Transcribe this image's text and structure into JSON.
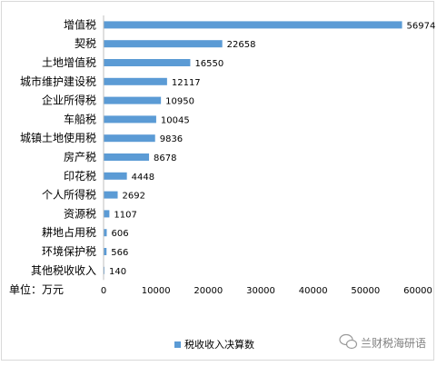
{
  "chart_data": {
    "type": "bar",
    "orientation": "horizontal",
    "categories": [
      "增值税",
      "契税",
      "土地增值税",
      "城市维护建设税",
      "企业所得税",
      "车船税",
      "城镇土地使用税",
      "房产税",
      "印花税",
      "个人所得税",
      "资源税",
      "耕地占用税",
      "环境保护税",
      "其他税收收入"
    ],
    "series": [
      {
        "name": "税收收入决算数",
        "values": [
          56974,
          22658,
          16550,
          12117,
          10950,
          10045,
          9836,
          8678,
          4448,
          2692,
          1107,
          606,
          566,
          140
        ]
      }
    ],
    "xlim": [
      0,
      60000
    ],
    "xticks": [
      "0",
      "10000",
      "20000",
      "30000",
      "40000",
      "50000",
      "60000"
    ],
    "unit_label": "单位：万元",
    "legend_position": "bottom",
    "grid": false,
    "colors": {
      "bar": "#5b9bd5",
      "axis": "#bfbfbf"
    }
  },
  "watermark": {
    "text": "兰财税海研语",
    "icon": "wechat-icon"
  }
}
